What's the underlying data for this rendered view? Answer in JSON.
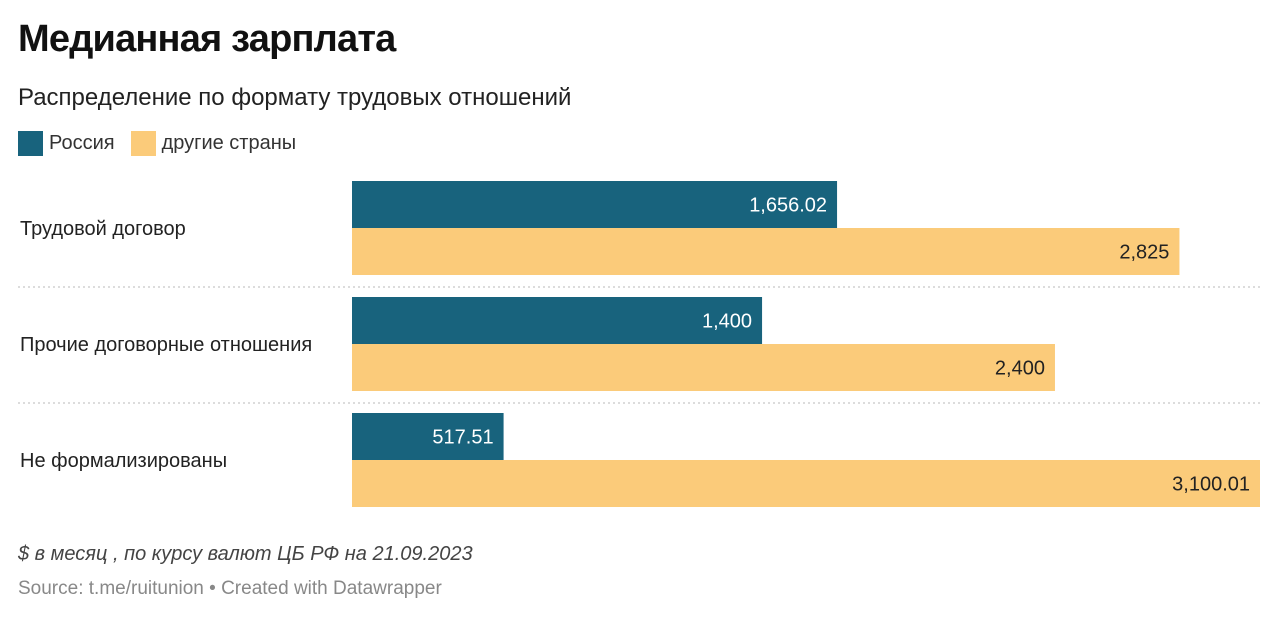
{
  "title": "Медианная зарплата",
  "subtitle": "Распределение по формату трудовых отношений",
  "colors": {
    "russia": "#18637d",
    "other": "#fbcb7a",
    "separator": "#c8c8c8",
    "label_on_dark": "#ffffff",
    "label_on_light": "#222222"
  },
  "chart_data": {
    "type": "bar",
    "orientation": "horizontal",
    "categories": [
      "Трудовой договор",
      "Прочие договорные отношения",
      "Не формализированы"
    ],
    "series": [
      {
        "name": "Россия",
        "values": [
          1656.02,
          1400,
          517.51
        ],
        "value_labels": [
          "1,656.02",
          "1,400",
          "517.51"
        ]
      },
      {
        "name": "другие страны",
        "values": [
          2825,
          2400,
          3100.01
        ],
        "value_labels": [
          "2,825",
          "2,400",
          "3,100.01"
        ]
      }
    ],
    "xlim": [
      0,
      3100.01
    ],
    "grid": false,
    "legend_position": "top-left"
  },
  "notes": "$ в месяц , по курсу валют ЦБ РФ на 21.09.2023",
  "source": "Source: t.me/ruitunion • Created with Datawrapper"
}
